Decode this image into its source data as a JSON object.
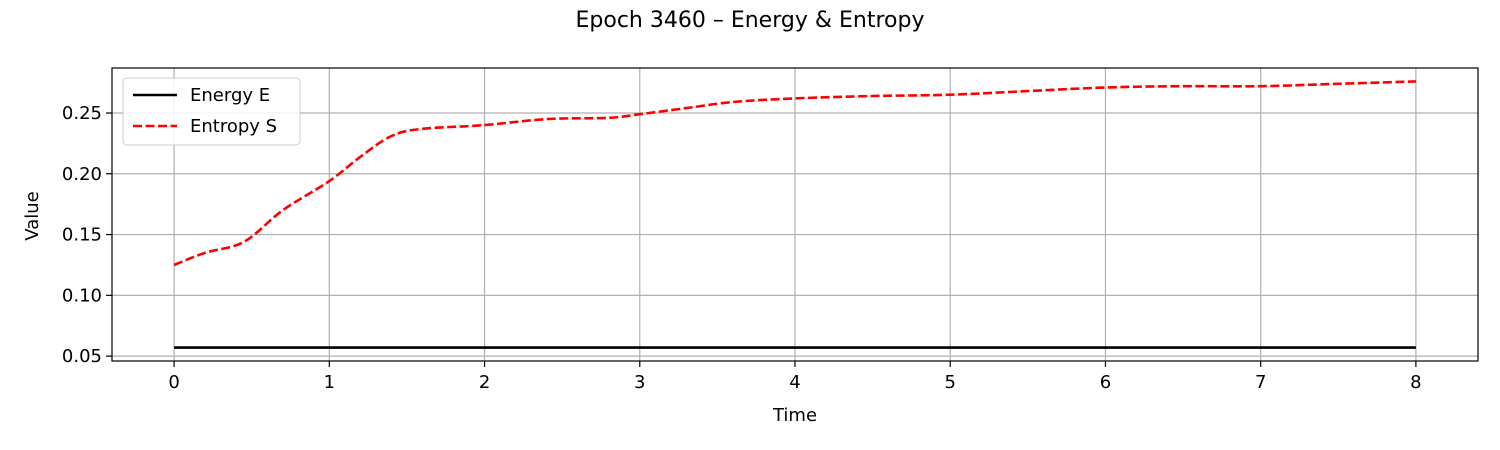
{
  "chart_data": {
    "type": "line",
    "title": "Epoch 3460 – Energy & Entropy",
    "xlabel": "Time",
    "ylabel": "Value",
    "xlim": [
      -0.4,
      8.4
    ],
    "ylim": [
      0.046,
      0.287
    ],
    "xticks": [
      0,
      1,
      2,
      3,
      4,
      5,
      6,
      7,
      8
    ],
    "yticks": [
      0.05,
      0.1,
      0.15,
      0.2,
      0.25
    ],
    "xtick_labels": [
      "0",
      "1",
      "2",
      "3",
      "4",
      "5",
      "6",
      "7",
      "8"
    ],
    "ytick_labels": [
      "0.05",
      "0.10",
      "0.15",
      "0.20",
      "0.25"
    ],
    "grid": true,
    "legend_position": "top-left",
    "series": [
      {
        "name": "Energy E",
        "color": "#000000",
        "style": "solid",
        "x": [
          0,
          8
        ],
        "y": [
          0.057,
          0.057
        ]
      },
      {
        "name": "Entropy S",
        "color": "#ff0000",
        "style": "dashed",
        "x": [
          0,
          0.2,
          0.45,
          0.7,
          1.0,
          1.2,
          1.4,
          1.6,
          2.0,
          2.4,
          2.8,
          3.0,
          3.3,
          3.6,
          4.0,
          4.5,
          5.0,
          5.5,
          6.0,
          6.5,
          7.0,
          7.5,
          8.0
        ],
        "y": [
          0.125,
          0.135,
          0.144,
          0.17,
          0.194,
          0.214,
          0.231,
          0.237,
          0.24,
          0.245,
          0.246,
          0.249,
          0.254,
          0.259,
          0.262,
          0.264,
          0.265,
          0.268,
          0.271,
          0.272,
          0.272,
          0.274,
          0.276
        ]
      }
    ]
  }
}
